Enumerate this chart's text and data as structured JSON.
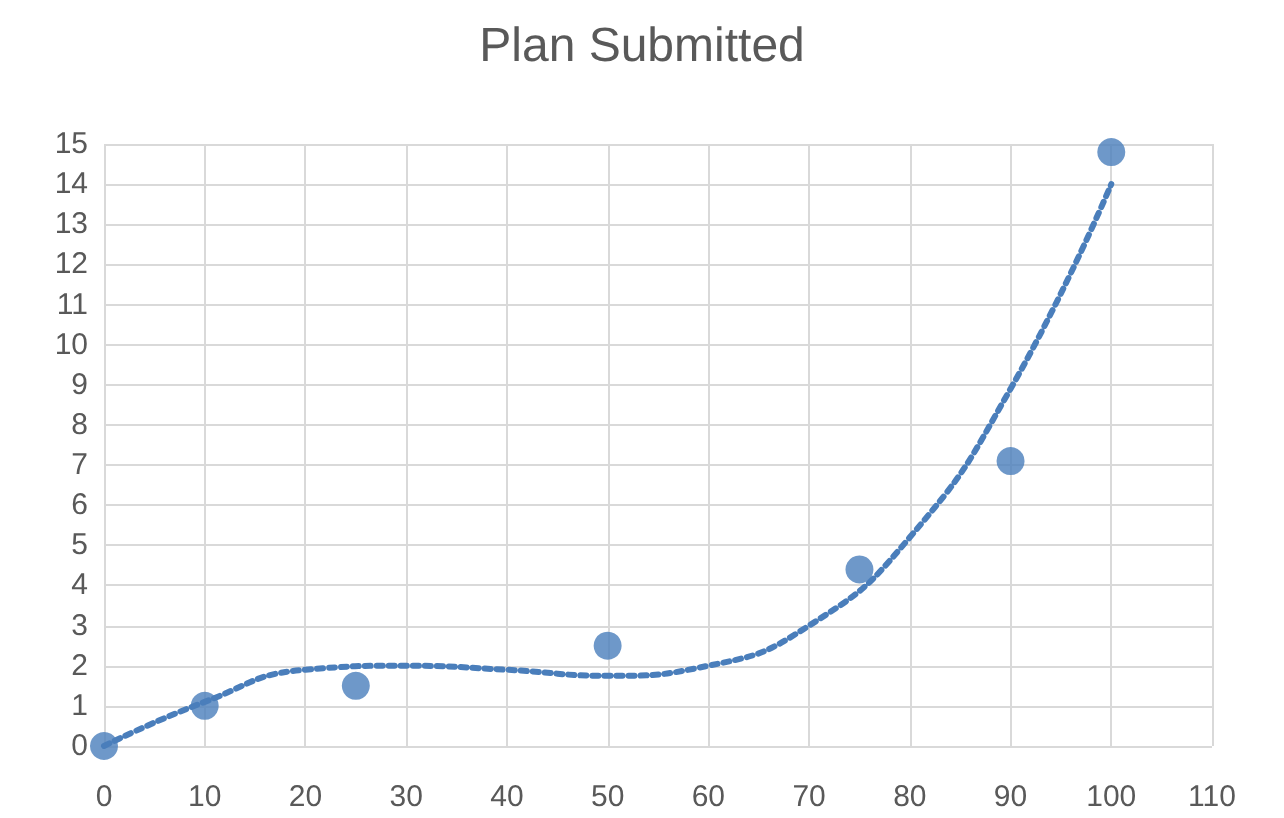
{
  "chart_data": {
    "type": "scatter",
    "title": "Plan Submitted",
    "x": [
      0,
      10,
      25,
      50,
      75,
      90,
      100
    ],
    "series": [
      {
        "color": "#4a7ebb",
        "marker": "circle",
        "values": [
          0,
          1,
          1.5,
          2.5,
          4.4,
          7.1,
          14.8
        ]
      },
      {
        "type": "line",
        "color": "#4a7ebb",
        "marker": "none",
        "line_style": "dotted",
        "x": [
          0,
          10,
          20,
          30,
          40,
          50,
          60,
          70,
          80,
          90,
          100
        ],
        "values": [
          0,
          1.1,
          1.9,
          2.0,
          1.9,
          1.75,
          2.0,
          3.0,
          5.2,
          8.9,
          14.0
        ]
      }
    ],
    "xlim": [
      0,
      110
    ],
    "xticks": [
      0,
      10,
      20,
      30,
      40,
      50,
      60,
      70,
      80,
      90,
      100,
      110
    ],
    "ylim": [
      0,
      15
    ],
    "yticks": [
      0,
      1,
      2,
      3,
      4,
      5,
      6,
      7,
      8,
      9,
      10,
      11,
      12,
      13,
      14,
      15
    ],
    "grid": true
  }
}
